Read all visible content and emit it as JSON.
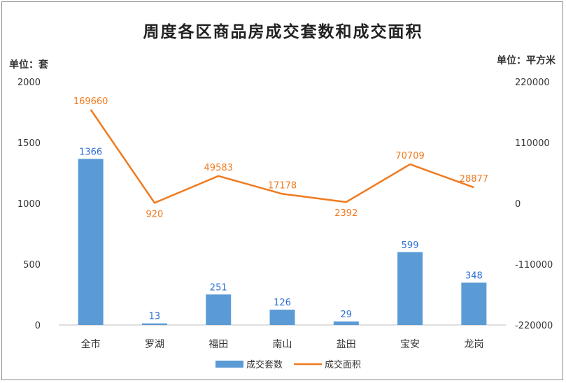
{
  "chart_data": {
    "type": "bar+line",
    "title": "周度各区商品房成交套数和成交面积",
    "left_unit": "单位：套",
    "right_unit": "单位：平方米",
    "categories": [
      "全市",
      "罗湖",
      "福田",
      "南山",
      "盐田",
      "宝安",
      "龙岗"
    ],
    "y_left": {
      "ylim": [
        0,
        2000
      ],
      "ticks": [
        "0",
        "500",
        "1000",
        "1500",
        "2000"
      ]
    },
    "y_right": {
      "ylim": [
        -220000,
        220000
      ],
      "ticks": [
        "-220000",
        "-110000",
        "0",
        "110000",
        "220000"
      ]
    },
    "series": [
      {
        "name": "成交套数",
        "type": "bar",
        "axis": "left",
        "color": "#5b9bd5",
        "label_color": "#2f6fd6",
        "values": [
          1366,
          13,
          251,
          126,
          29,
          599,
          348
        ]
      },
      {
        "name": "成交面积",
        "type": "line",
        "axis": "right",
        "color": "#f07a1e",
        "label_color": "#f07a1e",
        "values": [
          169660,
          920,
          49583,
          17178,
          2392,
          70709,
          28877
        ],
        "labels": [
          "169660",
          "920",
          "49583",
          "17178",
          "2392",
          "70709",
          "28877"
        ]
      }
    ],
    "legend": "bottom",
    "grid": false
  }
}
